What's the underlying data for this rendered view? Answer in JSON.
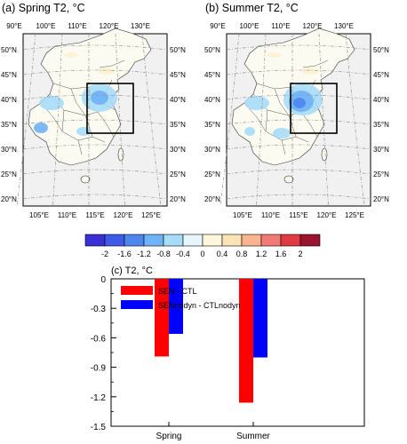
{
  "maps": {
    "panel_a_title": "(a) Spring T2, °C",
    "panel_b_title": "(b) Summer T2, °C",
    "top_lon_labels": [
      "90°E",
      "100°E",
      "110°E",
      "120°E",
      "130°E"
    ],
    "bottom_lon_labels": [
      "105°E",
      "110°E",
      "115°E",
      "120°E",
      "125°E"
    ],
    "left_lat_labels": [
      "50°N",
      "45°N",
      "40°N",
      "35°N",
      "30°N",
      "25°N",
      "20°N"
    ],
    "right_lat_labels": [
      "50°N",
      "45°N",
      "40°N",
      "35°N",
      "30°N",
      "25°N",
      "20°N"
    ]
  },
  "colorbar": {
    "labels": [
      "-2",
      "-1.6",
      "-1.2",
      "-0.8",
      "-0.4",
      "0",
      "0.4",
      "0.8",
      "1.2",
      "1.6",
      "2"
    ],
    "colors": [
      "#3b2fd6",
      "#3f5ae6",
      "#4f86ee",
      "#6fb2f5",
      "#a7dcf8",
      "#e6f6fb",
      "#fdf7dc",
      "#fbe3b6",
      "#f7b48e",
      "#f27a76",
      "#e03a44",
      "#9a1430"
    ]
  },
  "chart_data": {
    "type": "bar",
    "title": "(c) T2, °C",
    "categories": [
      "Spring",
      "Summer"
    ],
    "series": [
      {
        "name": "SEN - CTL",
        "values": [
          0.79,
          1.26
        ],
        "color": "#ff0000"
      },
      {
        "name": "SENnodyn - CTLnodyn",
        "values": [
          0.56,
          0.8
        ],
        "color": "#0000ff"
      }
    ],
    "yticks": [
      "0",
      "-0.3",
      "-0.6",
      "-0.9",
      "-1.2",
      "-1.5"
    ],
    "ylim": [
      0,
      1.5
    ],
    "y_inverted": true,
    "legend_position": "top-left"
  }
}
